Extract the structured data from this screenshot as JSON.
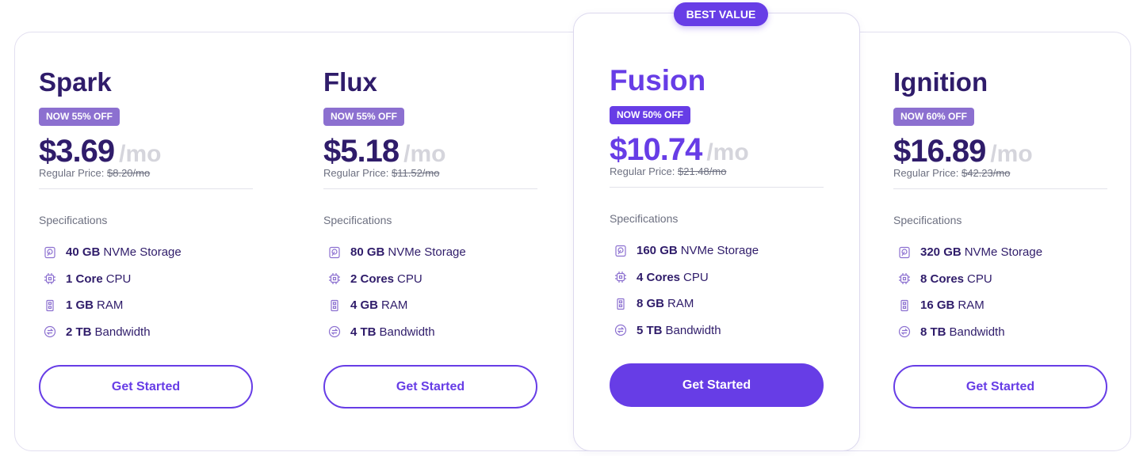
{
  "ribbon": "BEST VALUE",
  "colors": {
    "accent": "#673de6",
    "dark": "#2f1c6a",
    "badge_muted": "#8c70d0"
  },
  "plans": [
    {
      "name": "Spark",
      "badge": "NOW 55% OFF",
      "price": "$3.69",
      "per": "/mo",
      "regular_label": "Regular Price:",
      "regular_price": "$8.20/mo",
      "spec_heading": "Specifications",
      "specs": [
        {
          "icon": "storage-icon",
          "bold": "40 GB",
          "text": "NVMe Storage"
        },
        {
          "icon": "cpu-icon",
          "bold": "1 Core",
          "text": "CPU"
        },
        {
          "icon": "ram-icon",
          "bold": "1 GB",
          "text": "RAM"
        },
        {
          "icon": "bandwidth-icon",
          "bold": "2 TB",
          "text": "Bandwidth"
        }
      ],
      "cta": "Get Started"
    },
    {
      "name": "Flux",
      "badge": "NOW 55% OFF",
      "price": "$5.18",
      "per": "/mo",
      "regular_label": "Regular Price:",
      "regular_price": "$11.52/mo",
      "spec_heading": "Specifications",
      "specs": [
        {
          "icon": "storage-icon",
          "bold": "80 GB",
          "text": "NVMe Storage"
        },
        {
          "icon": "cpu-icon",
          "bold": "2 Cores",
          "text": "CPU"
        },
        {
          "icon": "ram-icon",
          "bold": "4 GB",
          "text": "RAM"
        },
        {
          "icon": "bandwidth-icon",
          "bold": "4 TB",
          "text": "Bandwidth"
        }
      ],
      "cta": "Get Started"
    },
    {
      "name": "Fusion",
      "badge": "NOW 50% OFF",
      "price": "$10.74",
      "per": "/mo",
      "regular_label": "Regular Price:",
      "regular_price": "$21.48/mo",
      "spec_heading": "Specifications",
      "specs": [
        {
          "icon": "storage-icon",
          "bold": "160 GB",
          "text": "NVMe Storage"
        },
        {
          "icon": "cpu-icon",
          "bold": "4 Cores",
          "text": "CPU"
        },
        {
          "icon": "ram-icon",
          "bold": "8 GB",
          "text": "RAM"
        },
        {
          "icon": "bandwidth-icon",
          "bold": "5 TB",
          "text": "Bandwidth"
        }
      ],
      "cta": "Get Started"
    },
    {
      "name": "Ignition",
      "badge": "NOW 60% OFF",
      "price": "$16.89",
      "per": "/mo",
      "regular_label": "Regular Price:",
      "regular_price": "$42.23/mo",
      "spec_heading": "Specifications",
      "specs": [
        {
          "icon": "storage-icon",
          "bold": "320 GB",
          "text": "NVMe Storage"
        },
        {
          "icon": "cpu-icon",
          "bold": "8 Cores",
          "text": "CPU"
        },
        {
          "icon": "ram-icon",
          "bold": "16 GB",
          "text": "RAM"
        },
        {
          "icon": "bandwidth-icon",
          "bold": "8 TB",
          "text": "Bandwidth"
        }
      ],
      "cta": "Get Started"
    }
  ]
}
